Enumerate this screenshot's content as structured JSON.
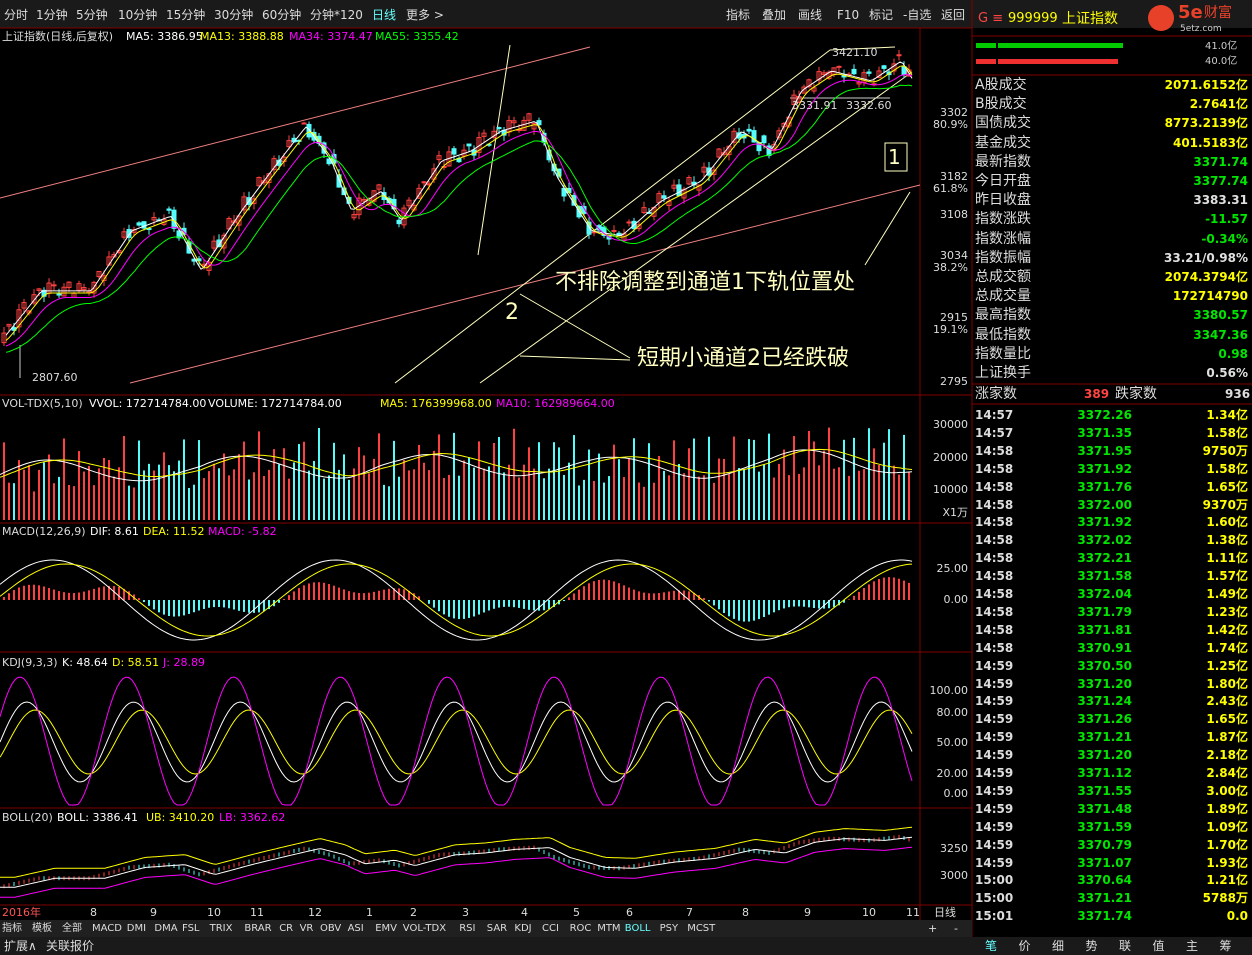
{
  "toolbar": {
    "periods": [
      "分时",
      "1分钟",
      "5分钟",
      "10分钟",
      "15分钟",
      "30分钟",
      "60分钟",
      "分钟*120",
      "日线",
      "更多 >"
    ],
    "tools": [
      "指标",
      "叠加",
      "画线",
      "F10",
      "标记",
      "-自选",
      "返回"
    ]
  },
  "main_panel": {
    "title": "上证指数(日线,后复权)",
    "indicators": [
      "MA5: 3386.95",
      "MA13: 3388.88",
      "MA34: 3374.47",
      "MA55: 3355.42"
    ],
    "axis_labels": [
      "3302",
      "80.9%",
      "3182",
      "61.8%",
      "3108",
      "3034",
      "38.2%",
      "2915",
      "19.1%",
      "2795"
    ],
    "annotations": {
      "high": "3421.10",
      "low_left": "3331.91",
      "low_right": "3332.60",
      "bottom": "2807.60",
      "channel_1": "1",
      "channel_2": "2",
      "note_1": "不排除调整到通道1下轨位置处",
      "note_2": "短期小通道2已经跌破"
    }
  },
  "volume_panel": {
    "indicators": [
      "VOL-TDX(5,10)",
      "VVOL: 172714784.00",
      "VOLUME: 172714784.00",
      "MA5: 176399968.00",
      "MA10: 162989664.00"
    ],
    "axis_labels": [
      "30000",
      "20000",
      "10000",
      "X1万"
    ]
  },
  "macd_panel": {
    "indicators": [
      "MACD(12,26,9)",
      "DIF: 8.61",
      "DEA: 11.52",
      "MACD: -5.82"
    ],
    "axis_labels": [
      "25.00",
      "0.00"
    ]
  },
  "kdj_panel": {
    "indicators": [
      "KDJ(9,3,3)",
      "K: 48.64",
      "D: 58.51",
      "J: 28.89"
    ],
    "axis_labels": [
      "100.00",
      "80.00",
      "50.00",
      "20.00",
      "0.00"
    ]
  },
  "boll_panel": {
    "indicators": [
      "BOLL(20)",
      "BOLL: 3386.41",
      "UB: 3410.20",
      "LB: 3362.62"
    ],
    "axis_labels": [
      "3250",
      "3000"
    ]
  },
  "x_axis": {
    "labels": [
      "2016年",
      "8",
      "9",
      "10",
      "11",
      "12",
      "1",
      "2",
      "3",
      "4",
      "5",
      "6",
      "7",
      "8",
      "9",
      "10",
      "11"
    ],
    "period": "日线"
  },
  "indicator_tabs": [
    "指标",
    "模板",
    "全部",
    "MACD",
    "DMI",
    "DMA",
    "FSL",
    "TRIX",
    "BRAR",
    "CR",
    "VR",
    "OBV",
    "ASI",
    "EMV",
    "VOL-TDX",
    "RSI",
    "SAR",
    "KDJ",
    "CCI",
    "ROC",
    "MTM",
    "BOLL",
    "PSY",
    "MCST"
  ],
  "zoom": [
    "+",
    "-"
  ],
  "footer": [
    "扩展∧",
    "关联报价"
  ],
  "quote_panel": {
    "header": {
      "prefix": "G ≡",
      "code": "999999",
      "name": "上证指数"
    },
    "logo": {
      "brand": "5e",
      "brand_text": "财富",
      "site": "5etz.com"
    },
    "bars": [
      "41.0亿",
      "40.0亿"
    ],
    "rows": [
      {
        "label": "A股成交",
        "value": "2071.6152亿",
        "color": "#ffff00"
      },
      {
        "label": "B股成交",
        "value": "2.7641亿",
        "color": "#ffff00"
      },
      {
        "label": "国债成交",
        "value": "8773.2139亿",
        "color": "#ffff00"
      },
      {
        "label": "基金成交",
        "value": "401.5183亿",
        "color": "#ffff00"
      },
      {
        "label": "最新指数",
        "value": "3371.74",
        "color": "#00e600"
      },
      {
        "label": "今日开盘",
        "value": "3377.74",
        "color": "#00e600"
      },
      {
        "label": "昨日收盘",
        "value": "3383.31",
        "color": "#e0e0e0"
      },
      {
        "label": "指数涨跌",
        "value": "-11.57",
        "color": "#00e600"
      },
      {
        "label": "指数涨幅",
        "value": "-0.34%",
        "color": "#00e600"
      },
      {
        "label": "指数振幅",
        "value": "33.21/0.98%",
        "color": "#e0e0e0"
      },
      {
        "label": "总成交额",
        "value": "2074.3794亿",
        "color": "#ffff00"
      },
      {
        "label": "总成交量",
        "value": "172714790",
        "color": "#ffff00"
      },
      {
        "label": "最高指数",
        "value": "3380.57",
        "color": "#00e600"
      },
      {
        "label": "最低指数",
        "value": "3347.36",
        "color": "#00e600"
      },
      {
        "label": "指数量比",
        "value": "0.98",
        "color": "#00e600"
      },
      {
        "label": "上证换手",
        "value": "0.56%",
        "color": "#e0e0e0"
      }
    ],
    "breadth": {
      "up_label": "涨家数",
      "up": "389",
      "down_label": "跌家数",
      "down": "936"
    },
    "ticks": [
      [
        "14:57",
        "3372.26",
        "1.34亿"
      ],
      [
        "14:57",
        "3371.35",
        "1.58亿"
      ],
      [
        "14:58",
        "3371.95",
        "9750万"
      ],
      [
        "14:58",
        "3371.92",
        "1.58亿"
      ],
      [
        "14:58",
        "3371.76",
        "1.65亿"
      ],
      [
        "14:58",
        "3372.00",
        "9370万"
      ],
      [
        "14:58",
        "3371.92",
        "1.60亿"
      ],
      [
        "14:58",
        "3372.02",
        "1.38亿"
      ],
      [
        "14:58",
        "3372.21",
        "1.11亿"
      ],
      [
        "14:58",
        "3371.58",
        "1.57亿"
      ],
      [
        "14:58",
        "3372.04",
        "1.49亿"
      ],
      [
        "14:58",
        "3371.79",
        "1.23亿"
      ],
      [
        "14:58",
        "3371.81",
        "1.42亿"
      ],
      [
        "14:58",
        "3370.91",
        "1.74亿"
      ],
      [
        "14:59",
        "3370.50",
        "1.25亿"
      ],
      [
        "14:59",
        "3371.20",
        "1.80亿"
      ],
      [
        "14:59",
        "3371.24",
        "2.43亿"
      ],
      [
        "14:59",
        "3371.26",
        "1.65亿"
      ],
      [
        "14:59",
        "3371.21",
        "1.87亿"
      ],
      [
        "14:59",
        "3371.20",
        "2.18亿"
      ],
      [
        "14:59",
        "3371.12",
        "2.84亿"
      ],
      [
        "14:59",
        "3371.55",
        "3.00亿"
      ],
      [
        "14:59",
        "3371.48",
        "1.89亿"
      ],
      [
        "14:59",
        "3371.59",
        "1.09亿"
      ],
      [
        "14:59",
        "3370.79",
        "1.70亿"
      ],
      [
        "14:59",
        "3371.07",
        "1.93亿"
      ],
      [
        "15:00",
        "3370.64",
        "1.21亿"
      ],
      [
        "15:00",
        "3371.21",
        "5788万"
      ],
      [
        "15:01",
        "3371.74",
        "0.0"
      ]
    ],
    "tabs": [
      "笔",
      "价",
      "细",
      "势",
      "联",
      "值",
      "主",
      "筹"
    ]
  }
}
